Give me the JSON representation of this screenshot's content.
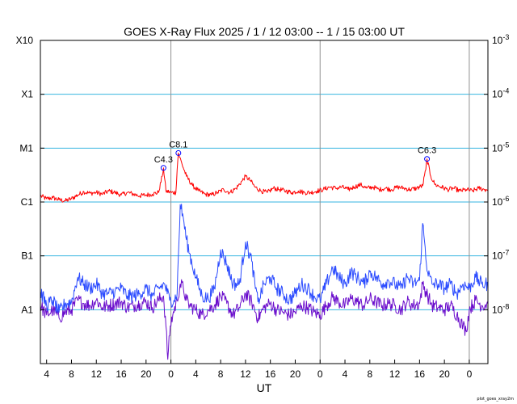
{
  "chart_data": {
    "type": "line",
    "title": "GOES X-Ray Flux   2025 /  1 / 12   03:00 --  1 / 15   03:00   UT",
    "xlabel": "UT",
    "credit": "plot_goes_xray2m",
    "x_range_hours": [
      0,
      72
    ],
    "y_scale": "log",
    "ylim": [
      1e-09,
      0.001
    ],
    "x_ticks": [
      {
        "h": 1,
        "label": "4"
      },
      {
        "h": 5,
        "label": "8"
      },
      {
        "h": 9,
        "label": "12"
      },
      {
        "h": 13,
        "label": "16"
      },
      {
        "h": 17,
        "label": "20"
      },
      {
        "h": 21,
        "label": "0"
      },
      {
        "h": 25,
        "label": "4"
      },
      {
        "h": 29,
        "label": "8"
      },
      {
        "h": 33,
        "label": "12"
      },
      {
        "h": 37,
        "label": "16"
      },
      {
        "h": 41,
        "label": "20"
      },
      {
        "h": 45,
        "label": "0"
      },
      {
        "h": 49,
        "label": "4"
      },
      {
        "h": 53,
        "label": "8"
      },
      {
        "h": 57,
        "label": "12"
      },
      {
        "h": 61,
        "label": "16"
      },
      {
        "h": 65,
        "label": "20"
      },
      {
        "h": 69,
        "label": "0"
      }
    ],
    "day_boundaries_hours": [
      21,
      45,
      69
    ],
    "left_ticks": [
      {
        "value": 0.001,
        "label": "X10"
      },
      {
        "value": 0.0001,
        "label": "X1"
      },
      {
        "value": 1e-05,
        "label": "M1"
      },
      {
        "value": 1e-06,
        "label": "C1"
      },
      {
        "value": 1e-07,
        "label": "B1"
      },
      {
        "value": 1e-08,
        "label": "A1"
      }
    ],
    "right_ticks": [
      {
        "value": 0.001,
        "base": "10",
        "exp": "-3"
      },
      {
        "value": 0.0001,
        "base": "10",
        "exp": "-4"
      },
      {
        "value": 1e-05,
        "base": "10",
        "exp": "-5"
      },
      {
        "value": 1e-06,
        "base": "10",
        "exp": "-6"
      },
      {
        "value": 1e-07,
        "base": "10",
        "exp": "-7"
      },
      {
        "value": 1e-08,
        "base": "10",
        "exp": "-8"
      }
    ],
    "gridlines": [
      0.0001,
      1e-05,
      1e-06,
      1e-07,
      1e-08
    ],
    "colors": {
      "long": "#ff0000",
      "short_a": "#2b4bff",
      "short_b": "#6a0dcc",
      "grid": "#36b4e0",
      "day_line": "#909090",
      "marker": "#0000ff"
    },
    "annotations": [
      {
        "label": "C4.3",
        "h": 19.8,
        "value": 4.3e-06
      },
      {
        "label": "C8.1",
        "h": 22.2,
        "value": 8.1e-06
      },
      {
        "label": "C6.3",
        "h": 62.2,
        "value": 6.3e-06
      }
    ],
    "series": [
      {
        "key": "long",
        "points": [
          [
            0,
            1.3e-06
          ],
          [
            1,
            1.15e-06
          ],
          [
            2,
            1.2e-06
          ],
          [
            3,
            1.1e-06
          ],
          [
            4,
            1.05e-06
          ],
          [
            5,
            1.15e-06
          ],
          [
            6,
            1.35e-06
          ],
          [
            7,
            1.55e-06
          ],
          [
            8,
            1.45e-06
          ],
          [
            9,
            1.5e-06
          ],
          [
            10,
            1.4e-06
          ],
          [
            11,
            1.6e-06
          ],
          [
            12,
            1.5e-06
          ],
          [
            13,
            1.35e-06
          ],
          [
            14,
            1.5e-06
          ],
          [
            15,
            1.4e-06
          ],
          [
            16,
            1.3e-06
          ],
          [
            17,
            1.35e-06
          ],
          [
            18,
            1.4e-06
          ],
          [
            19,
            1.5e-06
          ],
          [
            19.6,
            3e-06
          ],
          [
            19.8,
            4.3e-06
          ],
          [
            20.2,
            1.6e-06
          ],
          [
            21,
            1.5e-06
          ],
          [
            21.8,
            1.5e-06
          ],
          [
            22,
            4e-06
          ],
          [
            22.2,
            8.1e-06
          ],
          [
            22.8,
            5e-06
          ],
          [
            23.5,
            3e-06
          ],
          [
            24.5,
            2e-06
          ],
          [
            25.5,
            1.6e-06
          ],
          [
            26.5,
            1.4e-06
          ],
          [
            27.5,
            1.35e-06
          ],
          [
            28.5,
            1.5e-06
          ],
          [
            29.5,
            1.7e-06
          ],
          [
            30.5,
            1.5e-06
          ],
          [
            31.5,
            1.8e-06
          ],
          [
            32.5,
            2.5e-06
          ],
          [
            33,
            3e-06
          ],
          [
            33.8,
            2.5e-06
          ],
          [
            34.5,
            1.9e-06
          ],
          [
            35.5,
            1.6e-06
          ],
          [
            36.5,
            1.5e-06
          ],
          [
            37.5,
            1.8e-06
          ],
          [
            38.5,
            1.7e-06
          ],
          [
            39.5,
            1.6e-06
          ],
          [
            40.5,
            1.5e-06
          ],
          [
            41.5,
            1.6e-06
          ],
          [
            42.5,
            1.5e-06
          ],
          [
            43.5,
            1.5e-06
          ],
          [
            44.5,
            1.6e-06
          ],
          [
            45.5,
            1.7e-06
          ],
          [
            46.5,
            1.9e-06
          ],
          [
            47.5,
            1.8e-06
          ],
          [
            48.5,
            1.9e-06
          ],
          [
            49.5,
            1.7e-06
          ],
          [
            50.5,
            1.9e-06
          ],
          [
            51.5,
            2.1e-06
          ],
          [
            52.5,
            1.8e-06
          ],
          [
            53.5,
            1.9e-06
          ],
          [
            54.5,
            1.7e-06
          ],
          [
            55.5,
            1.8e-06
          ],
          [
            56.5,
            1.7e-06
          ],
          [
            57.5,
            1.9e-06
          ],
          [
            58.5,
            1.8e-06
          ],
          [
            59.5,
            1.7e-06
          ],
          [
            60.5,
            1.8e-06
          ],
          [
            61.5,
            2e-06
          ],
          [
            62,
            4e-06
          ],
          [
            62.2,
            6.3e-06
          ],
          [
            62.8,
            3e-06
          ],
          [
            63.5,
            2.1e-06
          ],
          [
            64.5,
            1.9e-06
          ],
          [
            65.5,
            1.7e-06
          ],
          [
            66.5,
            1.8e-06
          ],
          [
            67.5,
            1.6e-06
          ],
          [
            68.5,
            1.7e-06
          ],
          [
            69.5,
            1.6e-06
          ],
          [
            70.5,
            1.8e-06
          ],
          [
            71.5,
            1.7e-06
          ],
          [
            72,
            1.7e-06
          ]
        ]
      },
      {
        "key": "short_a",
        "points": [
          [
            0,
            2.2e-08
          ],
          [
            1,
            1.2e-08
          ],
          [
            2,
            1.5e-08
          ],
          [
            3,
            9e-09
          ],
          [
            4,
            1.3e-08
          ],
          [
            5,
            1.4e-08
          ],
          [
            6,
            4e-08
          ],
          [
            7,
            3e-08
          ],
          [
            8,
            2.5e-08
          ],
          [
            9,
            3e-08
          ],
          [
            10,
            2e-08
          ],
          [
            11,
            2e-08
          ],
          [
            12,
            2.2e-08
          ],
          [
            13,
            2.5e-08
          ],
          [
            14,
            1.8e-08
          ],
          [
            15,
            1.8e-08
          ],
          [
            16,
            2e-08
          ],
          [
            17,
            2.5e-08
          ],
          [
            18,
            1.8e-08
          ],
          [
            19,
            2.5e-08
          ],
          [
            20,
            3e-08
          ],
          [
            20.8,
            1.5e-08
          ],
          [
            21.5,
            1.5e-08
          ],
          [
            22,
            2e-08
          ],
          [
            22.5,
            9e-07
          ],
          [
            23,
            5e-07
          ],
          [
            23.5,
            2e-07
          ],
          [
            24,
            1.1e-07
          ],
          [
            25,
            4e-08
          ],
          [
            26,
            1.8e-08
          ],
          [
            27,
            1.6e-08
          ],
          [
            28,
            2.5e-08
          ],
          [
            29,
            1.3e-07
          ],
          [
            30,
            7e-08
          ],
          [
            31,
            3e-08
          ],
          [
            32,
            3e-08
          ],
          [
            33,
            1.8e-07
          ],
          [
            34,
            8e-08
          ],
          [
            34.5,
            3e-08
          ],
          [
            35,
            1.4e-08
          ],
          [
            36,
            3e-08
          ],
          [
            37,
            4e-08
          ],
          [
            38,
            2.5e-08
          ],
          [
            39,
            2e-08
          ],
          [
            40,
            1.5e-08
          ],
          [
            41,
            2e-08
          ],
          [
            42,
            3e-08
          ],
          [
            43,
            2.5e-08
          ],
          [
            44,
            1.8e-08
          ],
          [
            45,
            1.5e-08
          ],
          [
            46,
            3e-08
          ],
          [
            47,
            6e-08
          ],
          [
            48,
            4e-08
          ],
          [
            49,
            3e-08
          ],
          [
            50,
            5e-08
          ],
          [
            51,
            4e-08
          ],
          [
            52,
            3e-08
          ],
          [
            53,
            5e-08
          ],
          [
            54,
            4e-08
          ],
          [
            55,
            3e-08
          ],
          [
            56,
            3.5e-08
          ],
          [
            57,
            3e-08
          ],
          [
            58,
            2.5e-08
          ],
          [
            59,
            4e-08
          ],
          [
            60,
            3e-08
          ],
          [
            61,
            3.5e-08
          ],
          [
            61.5,
            4e-07
          ],
          [
            62.3,
            5e-08
          ],
          [
            63,
            3e-08
          ],
          [
            64,
            3e-08
          ],
          [
            65,
            2.5e-08
          ],
          [
            66,
            3e-08
          ],
          [
            67,
            2e-08
          ],
          [
            68,
            3e-08
          ],
          [
            69,
            2.5e-08
          ],
          [
            70,
            4e-08
          ],
          [
            71,
            3e-08
          ],
          [
            72,
            3e-08
          ]
        ]
      },
      {
        "key": "short_b",
        "points": [
          [
            0,
            1.2e-08
          ],
          [
            1,
            8e-09
          ],
          [
            2,
            1e-08
          ],
          [
            3,
            7e-09
          ],
          [
            4,
            9e-09
          ],
          [
            5,
            1e-08
          ],
          [
            6,
            1.5e-08
          ],
          [
            7,
            1.3e-08
          ],
          [
            8,
            1.2e-08
          ],
          [
            9,
            1.5e-08
          ],
          [
            10,
            1.1e-08
          ],
          [
            11,
            1.2e-08
          ],
          [
            12,
            1.3e-08
          ],
          [
            13,
            1.4e-08
          ],
          [
            14,
            1.1e-08
          ],
          [
            15,
            1.2e-08
          ],
          [
            16,
            1.3e-08
          ],
          [
            17,
            1.4e-08
          ],
          [
            18,
            1.1e-08
          ],
          [
            19,
            1.5e-08
          ],
          [
            19.8,
            1.8e-08
          ],
          [
            20.2,
            5e-09
          ],
          [
            20.5,
            1.2e-09
          ],
          [
            20.9,
            5e-09
          ],
          [
            21.3,
            8e-09
          ],
          [
            22,
            1.5e-08
          ],
          [
            22.5,
            3e-08
          ],
          [
            23,
            2.5e-08
          ],
          [
            23.5,
            1.5e-08
          ],
          [
            24,
            1.2e-08
          ],
          [
            25,
            1e-08
          ],
          [
            26,
            8e-09
          ],
          [
            27,
            1e-08
          ],
          [
            28,
            1.2e-08
          ],
          [
            29,
            1.8e-08
          ],
          [
            30,
            1.3e-08
          ],
          [
            31,
            8e-09
          ],
          [
            32,
            1.1e-08
          ],
          [
            33,
            2e-08
          ],
          [
            34,
            1.4e-08
          ],
          [
            35,
            7e-09
          ],
          [
            36,
            1.1e-08
          ],
          [
            37,
            1.3e-08
          ],
          [
            38,
            1e-08
          ],
          [
            39,
            9e-09
          ],
          [
            40,
            8e-09
          ],
          [
            41,
            9e-09
          ],
          [
            42,
            1.2e-08
          ],
          [
            43,
            1.1e-08
          ],
          [
            44,
            9e-09
          ],
          [
            45,
            8e-09
          ],
          [
            46,
            1.2e-08
          ],
          [
            47,
            1.7e-08
          ],
          [
            48,
            1.4e-08
          ],
          [
            49,
            1.2e-08
          ],
          [
            50,
            1.6e-08
          ],
          [
            51,
            1.4e-08
          ],
          [
            52,
            1.2e-08
          ],
          [
            53,
            1.6e-08
          ],
          [
            54,
            1.4e-08
          ],
          [
            55,
            1.2e-08
          ],
          [
            56,
            1.3e-08
          ],
          [
            57,
            1.2e-08
          ],
          [
            58,
            1e-08
          ],
          [
            59,
            1.4e-08
          ],
          [
            60,
            1.2e-08
          ],
          [
            61,
            1.3e-08
          ],
          [
            61.5,
            3e-08
          ],
          [
            62.3,
            1.8e-08
          ],
          [
            63,
            1.2e-08
          ],
          [
            64,
            1.1e-08
          ],
          [
            65,
            1e-08
          ],
          [
            66,
            1.2e-08
          ],
          [
            67,
            8e-09
          ],
          [
            68,
            5e-09
          ],
          [
            68.5,
            4e-09
          ],
          [
            69,
            1e-08
          ],
          [
            70,
            1.5e-08
          ],
          [
            71,
            1.2e-08
          ],
          [
            72,
            1.3e-08
          ]
        ]
      }
    ]
  }
}
